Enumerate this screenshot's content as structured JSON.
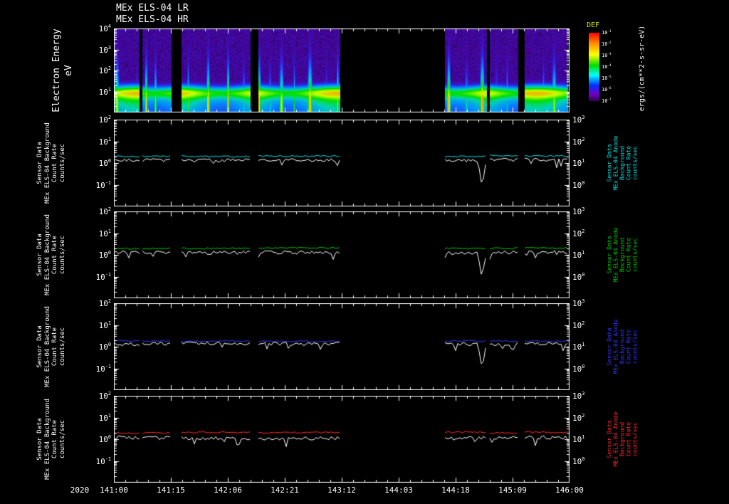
{
  "titles": {
    "lr": "MEx ELS-04 LR",
    "hr": "MEx ELS-04 HR"
  },
  "x_axis": {
    "year": "2020",
    "ticks": [
      "141:00",
      "141:15",
      "142:06",
      "142:21",
      "143:12",
      "144:03",
      "144:18",
      "145:09",
      "146:00"
    ]
  },
  "spectrogram": {
    "ylabel_lines": [
      "Electron Energy",
      "eV"
    ],
    "colorbar": {
      "title": "DEF",
      "title_color": "#c8e000",
      "units": "ergs/(cm**2-s-sr-eV)",
      "ticks": [
        "10^-1",
        "10^-2",
        "10^-3",
        "10^-4",
        "10^-5",
        "10^-6",
        "10^-7"
      ]
    }
  },
  "line_panels": {
    "left_label_lines": [
      "Sensor Data",
      "MEx ELS-04 Background",
      "Count Rate",
      "counts/sec"
    ]
  },
  "chart_data": [
    {
      "type": "heatmap",
      "title": "MEx ELS-04 LR/HR electron energy-time spectrogram",
      "ylabel": "Electron Energy (eV)",
      "y_log10_range": [
        0,
        4
      ],
      "yticks": [
        "10^4",
        "10^3",
        "10^2",
        "10^1"
      ],
      "x_ticks": [
        "141:00",
        "141:15",
        "142:06",
        "142:21",
        "143:12",
        "144:03",
        "144:18",
        "145:09",
        "146:00"
      ],
      "colorbar_log10_range": [
        -7,
        -1
      ],
      "colorbar_units": "ergs/(cm**2-s-sr-eV)",
      "low_energy_band_center_log10_eV": 0.9,
      "data_segments_frac": [
        [
          0.0,
          0.056
        ],
        [
          0.062,
          0.127
        ],
        [
          0.148,
          0.3
        ],
        [
          0.317,
          0.497
        ],
        [
          0.727,
          0.818
        ],
        [
          0.825,
          0.888
        ],
        [
          0.902,
          0.997
        ]
      ]
    },
    {
      "type": "line",
      "panel": "anode-1",
      "yticks_left": [
        "10^2",
        "10^1",
        "10^0",
        "10^-1"
      ],
      "yticks_right": [
        "10^3",
        "10^2",
        "10^1",
        "10^0"
      ],
      "y_log10_range_left": [
        -2,
        2
      ],
      "y_log10_range_right": [
        -1,
        3
      ],
      "right_label_lines": [
        "Sensor Data",
        "MEx ELS-04 Anode",
        "Background",
        "Count Rate",
        "counts/sec"
      ],
      "series": [
        {
          "name": "anode-count-rate",
          "color": "#00e0e0",
          "approx_level_counts_per_sec": 2.1
        },
        {
          "name": "background-count-rate",
          "color": "#ffffff",
          "approx_level_counts_per_sec": 1.35,
          "dropout_dip_rel_x": 0.808
        }
      ]
    },
    {
      "type": "line",
      "panel": "anode-2",
      "yticks_left": [
        "10^2",
        "10^1",
        "10^0",
        "10^-1"
      ],
      "yticks_right": [
        "10^3",
        "10^2",
        "10^1",
        "10^0"
      ],
      "y_log10_range_left": [
        -2,
        2
      ],
      "y_log10_range_right": [
        -1,
        3
      ],
      "right_label_lines": [
        "Sensor Data",
        "MEx ELS-04 Anode",
        "Background",
        "Count Rate",
        "counts/sec"
      ],
      "series": [
        {
          "name": "anode-count-rate",
          "color": "#00c800",
          "approx_level_counts_per_sec": 2.0
        },
        {
          "name": "background-count-rate",
          "color": "#ffffff",
          "approx_level_counts_per_sec": 1.3,
          "dropout_dip_rel_x": 0.808
        }
      ]
    },
    {
      "type": "line",
      "panel": "anode-3",
      "yticks_left": [
        "10^2",
        "10^1",
        "10^0",
        "10^-1"
      ],
      "yticks_right": [
        "10^3",
        "10^2",
        "10^1",
        "10^0"
      ],
      "y_log10_range_left": [
        -2,
        2
      ],
      "y_log10_range_right": [
        -1,
        3
      ],
      "right_label_lines": [
        "Sensor Data",
        "MEx ELS-04 Anode",
        "Background",
        "Count Rate",
        "counts/sec"
      ],
      "series": [
        {
          "name": "anode-count-rate",
          "color": "#3434ff",
          "approx_level_counts_per_sec": 1.75
        },
        {
          "name": "background-count-rate",
          "color": "#ffffff",
          "approx_level_counts_per_sec": 1.35,
          "dropout_dip_rel_x": 0.808
        }
      ]
    },
    {
      "type": "line",
      "panel": "anode-4",
      "yticks_left": [
        "10^2",
        "10^1",
        "10^0",
        "10^-1"
      ],
      "yticks_right": [
        "10^3",
        "10^2",
        "10^1",
        "10^0"
      ],
      "y_log10_range_left": [
        -2,
        2
      ],
      "y_log10_range_right": [
        -1,
        3
      ],
      "right_label_lines": [
        "Sensor Data",
        "MEx ELS-04 Anode",
        "Background",
        "Count Rate",
        "counts/sec"
      ],
      "series": [
        {
          "name": "anode-count-rate",
          "color": "#ff2828",
          "approx_level_counts_per_sec": 2.0
        },
        {
          "name": "background-count-rate",
          "color": "#ffffff",
          "approx_level_counts_per_sec": 1.15
        }
      ]
    }
  ]
}
